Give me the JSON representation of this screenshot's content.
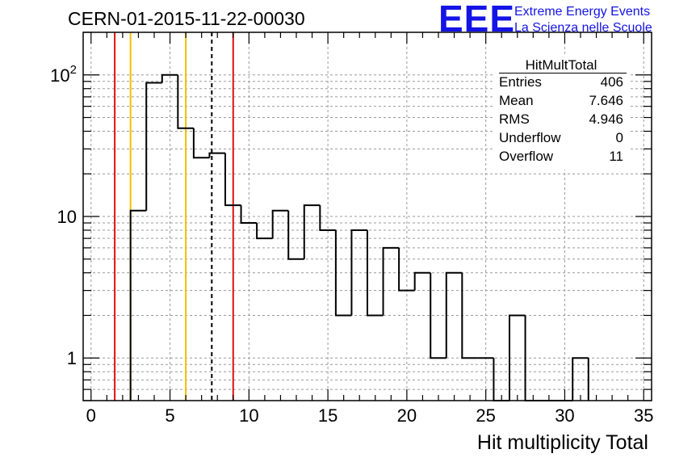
{
  "run_title": "CERN-01-2015-11-22-00030",
  "logo": {
    "mark": "EEE",
    "line1": "Extreme Energy Events",
    "line2": "La Scienza nelle Scuole",
    "color": "#1414e6"
  },
  "stats_box": {
    "title": "HitMultTotal",
    "rows": [
      {
        "key": "Entries",
        "value": "406"
      },
      {
        "key": "Mean",
        "value": "7.646"
      },
      {
        "key": "RMS",
        "value": "4.946"
      },
      {
        "key": "Underflow",
        "value": "0"
      },
      {
        "key": "Overflow",
        "value": "11"
      }
    ]
  },
  "chart_data": {
    "type": "bar",
    "histogram": true,
    "xlabel": "Hit multiplicity Total",
    "ylabel": "",
    "xlim": [
      -0.5,
      35.5
    ],
    "ylim": [
      0.5,
      200
    ],
    "y_scale": "log",
    "grid": true,
    "x_ticks": [
      0,
      5,
      10,
      15,
      20,
      25,
      30,
      35
    ],
    "y_tick_labels": [
      {
        "value": 1,
        "label": "1"
      },
      {
        "value": 10,
        "label": "10"
      },
      {
        "value": 100,
        "label": "10",
        "exponent": "2"
      }
    ],
    "bin_edges": [
      2.5,
      3.5,
      4.5,
      5.5,
      6.5,
      7.5,
      8.5,
      9.5,
      10.5,
      11.5,
      12.5,
      13.5,
      14.5,
      15.5,
      16.5,
      17.5,
      18.5,
      19.5,
      20.5,
      21.5,
      22.5,
      23.5,
      24.5,
      25.5,
      26.5,
      27.5,
      28.5,
      29.5,
      30.5,
      31.5
    ],
    "counts": [
      11,
      88,
      100,
      42,
      26,
      28,
      12,
      9,
      7,
      11,
      5,
      12,
      8,
      2,
      8,
      2,
      6,
      3,
      4,
      1,
      4,
      1,
      1,
      0,
      2,
      0,
      0,
      0,
      1
    ],
    "vertical_lines": [
      {
        "x": 1.5,
        "color": "#e01010",
        "style": "solid"
      },
      {
        "x": 2.5,
        "color": "#f0c000",
        "style": "solid"
      },
      {
        "x": 6.0,
        "color": "#f0c000",
        "style": "solid"
      },
      {
        "x": 7.646,
        "color": "#000000",
        "style": "dashed"
      },
      {
        "x": 9.0,
        "color": "#e01010",
        "style": "solid"
      }
    ]
  }
}
